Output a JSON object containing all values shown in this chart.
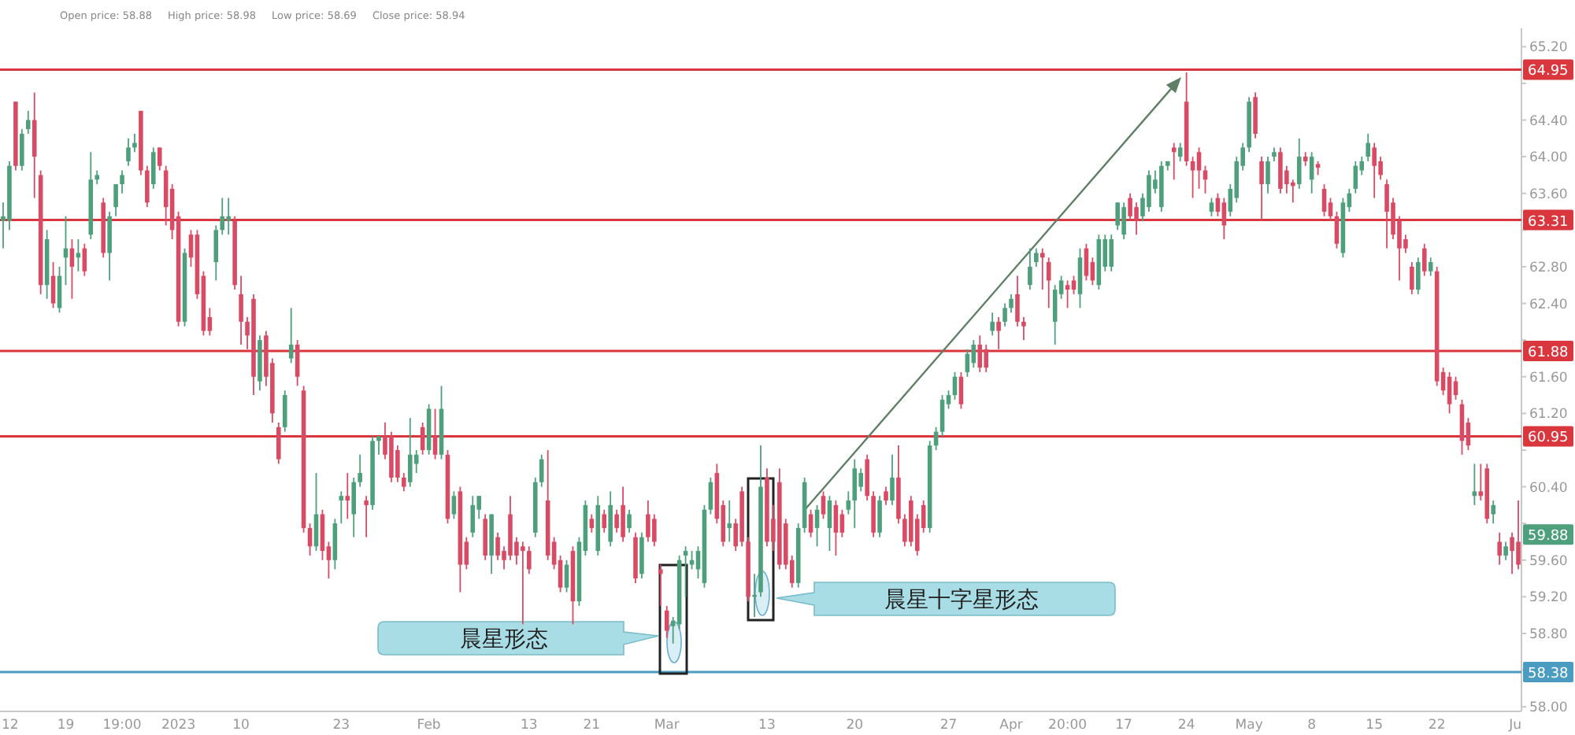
{
  "chart_data": {
    "type": "candlestick",
    "categories": [
      "12",
      null,
      null,
      null,
      null,
      null,
      null,
      null,
      null,
      null,
      "19",
      null,
      null,
      null,
      null,
      null,
      null,
      null,
      null,
      "19:00",
      null,
      null,
      null,
      null,
      null,
      null,
      null,
      null,
      "2023",
      null,
      null,
      null,
      null,
      null,
      null,
      null,
      null,
      null,
      "10",
      null,
      null,
      null,
      null,
      null,
      null,
      null,
      null,
      null,
      null,
      null,
      null,
      null,
      null,
      null,
      "23",
      null,
      null,
      null,
      null,
      null,
      null,
      null,
      null,
      null,
      null,
      null,
      null,
      null,
      "Feb",
      null,
      null,
      null,
      null,
      null,
      null,
      null,
      null,
      null,
      null,
      null,
      null,
      null,
      null,
      null,
      "13",
      null,
      null,
      null,
      null,
      null,
      null,
      null,
      null,
      null,
      "21",
      null,
      null,
      null,
      null,
      null,
      null,
      null,
      null,
      null,
      null,
      null,
      "Mar",
      null,
      null,
      null,
      null,
      null,
      null,
      null,
      null,
      null,
      null,
      null,
      null,
      null,
      null,
      null,
      "13",
      null,
      null,
      null,
      null,
      null,
      null,
      null,
      null,
      null,
      null,
      null,
      null,
      null,
      "20",
      null,
      null,
      null,
      null,
      null,
      null,
      null,
      null,
      null,
      null,
      null,
      null,
      null,
      null,
      "27",
      null,
      null,
      null,
      null,
      null,
      null,
      null,
      null,
      null,
      "Apr",
      null,
      null,
      null,
      null,
      null,
      null,
      null,
      null,
      "20:00",
      null,
      null,
      null,
      null,
      null,
      null,
      null,
      null,
      "17",
      null,
      null,
      null,
      null,
      null,
      null,
      null,
      null,
      null,
      "24",
      null,
      null,
      null,
      null,
      null,
      null,
      null,
      null,
      null,
      "May",
      null,
      null,
      null,
      null,
      null,
      null,
      null,
      null,
      null,
      "8",
      null,
      null,
      null,
      null,
      null,
      null,
      null,
      null,
      null,
      "15",
      null,
      null,
      null,
      null,
      null,
      null,
      null,
      null,
      null,
      "22",
      null,
      null,
      null,
      null,
      null,
      null,
      null,
      null,
      null,
      null,
      null,
      null,
      "Ju"
    ],
    "ohlc": [
      [
        63.3,
        63.5,
        63.0,
        63.35
      ],
      [
        63.3,
        63.95,
        63.2,
        63.9
      ],
      [
        64.6,
        64.6,
        63.85,
        63.9
      ],
      [
        63.9,
        64.3,
        63.85,
        64.25
      ],
      [
        64.3,
        64.5,
        64.25,
        64.4
      ],
      [
        64.4,
        64.7,
        63.55,
        64.0
      ],
      [
        63.8,
        63.85,
        62.5,
        62.6
      ],
      [
        62.6,
        63.2,
        62.45,
        63.1
      ],
      [
        62.7,
        62.85,
        62.35,
        62.4
      ],
      [
        62.35,
        62.8,
        62.3,
        62.7
      ],
      [
        62.9,
        63.35,
        62.6,
        63.0
      ],
      [
        63.0,
        63.1,
        62.45,
        62.8
      ],
      [
        62.9,
        63.1,
        62.75,
        62.95
      ],
      [
        63.0,
        63.05,
        62.7,
        62.75
      ],
      [
        63.15,
        64.05,
        63.1,
        63.75
      ],
      [
        63.75,
        63.85,
        63.7,
        63.8
      ],
      [
        63.5,
        63.55,
        62.9,
        62.95
      ],
      [
        62.95,
        63.4,
        62.65,
        63.35
      ],
      [
        63.45,
        63.7,
        63.35,
        63.7
      ],
      [
        63.7,
        63.85,
        63.6,
        63.8
      ],
      [
        63.95,
        64.2,
        63.9,
        64.1
      ],
      [
        64.1,
        64.25,
        64.05,
        64.15
      ],
      [
        64.5,
        64.5,
        63.8,
        63.85
      ],
      [
        63.85,
        63.9,
        63.45,
        63.5
      ],
      [
        63.7,
        64.1,
        63.65,
        64.05
      ],
      [
        64.1,
        64.1,
        63.85,
        63.9
      ],
      [
        63.85,
        63.9,
        63.25,
        63.45
      ],
      [
        63.65,
        63.7,
        63.1,
        63.2
      ],
      [
        63.35,
        63.4,
        62.15,
        62.2
      ],
      [
        62.2,
        63.0,
        62.15,
        62.95
      ],
      [
        63.15,
        63.2,
        62.8,
        62.9
      ],
      [
        63.15,
        63.2,
        62.45,
        62.5
      ],
      [
        62.7,
        62.75,
        62.05,
        62.1
      ],
      [
        62.25,
        62.35,
        62.05,
        62.1
      ],
      [
        62.85,
        63.25,
        62.65,
        63.2
      ],
      [
        63.2,
        63.55,
        63.15,
        63.35
      ],
      [
        63.3,
        63.55,
        63.15,
        63.35
      ],
      [
        63.3,
        63.35,
        62.55,
        62.6
      ],
      [
        62.5,
        62.7,
        61.95,
        62.2
      ],
      [
        62.2,
        62.25,
        61.9,
        62.05
      ],
      [
        62.45,
        62.5,
        61.4,
        61.6
      ],
      [
        61.55,
        62.05,
        61.45,
        62.0
      ],
      [
        62.05,
        62.1,
        61.5,
        61.6
      ],
      [
        61.75,
        61.8,
        61.1,
        61.2
      ],
      [
        61.05,
        61.1,
        60.65,
        60.7
      ],
      [
        61.05,
        61.45,
        61.0,
        61.4
      ],
      [
        61.8,
        62.35,
        61.75,
        61.95
      ],
      [
        61.95,
        62.0,
        61.5,
        61.6
      ],
      [
        61.45,
        61.5,
        59.9,
        59.95
      ],
      [
        59.95,
        60.0,
        59.65,
        59.75
      ],
      [
        59.75,
        60.55,
        59.7,
        60.1
      ],
      [
        60.1,
        60.15,
        59.6,
        59.7
      ],
      [
        59.75,
        59.8,
        59.4,
        59.6
      ],
      [
        59.6,
        60.05,
        59.5,
        60.0
      ],
      [
        60.25,
        60.35,
        60.0,
        60.3
      ],
      [
        60.3,
        60.55,
        60.05,
        60.25
      ],
      [
        60.1,
        60.5,
        59.85,
        60.45
      ],
      [
        60.45,
        60.75,
        60.4,
        60.55
      ],
      [
        60.25,
        60.3,
        59.85,
        60.2
      ],
      [
        60.2,
        60.95,
        60.15,
        60.9
      ],
      [
        60.9,
        60.95,
        60.75,
        60.95
      ],
      [
        60.95,
        61.1,
        60.7,
        60.75
      ],
      [
        60.95,
        61.0,
        60.45,
        60.5
      ],
      [
        60.8,
        60.85,
        60.45,
        60.5
      ],
      [
        60.5,
        60.55,
        60.35,
        60.4
      ],
      [
        60.45,
        61.15,
        60.4,
        60.75
      ],
      [
        60.65,
        60.8,
        60.55,
        60.75
      ],
      [
        61.05,
        61.1,
        60.75,
        60.8
      ],
      [
        60.8,
        61.3,
        60.75,
        61.25
      ],
      [
        60.95,
        61.25,
        60.7,
        60.75
      ],
      [
        60.75,
        61.5,
        60.7,
        61.25
      ],
      [
        60.75,
        60.8,
        60.0,
        60.05
      ],
      [
        60.1,
        60.35,
        60.05,
        60.3
      ],
      [
        60.35,
        60.4,
        59.25,
        59.55
      ],
      [
        59.8,
        59.85,
        59.5,
        59.55
      ],
      [
        59.9,
        60.3,
        59.85,
        60.2
      ],
      [
        60.15,
        60.3,
        60.05,
        60.3
      ],
      [
        60.05,
        60.1,
        59.6,
        59.65
      ],
      [
        59.65,
        60.1,
        59.45,
        60.1
      ],
      [
        59.85,
        59.9,
        59.6,
        59.65
      ],
      [
        59.7,
        59.75,
        59.5,
        59.6
      ],
      [
        60.1,
        60.3,
        59.6,
        59.65
      ],
      [
        59.8,
        59.85,
        59.55,
        59.65
      ],
      [
        59.75,
        59.8,
        58.9,
        59.7
      ],
      [
        59.7,
        59.75,
        59.45,
        59.5
      ],
      [
        59.9,
        60.5,
        59.85,
        60.45
      ],
      [
        60.45,
        60.75,
        60.4,
        60.7
      ],
      [
        60.25,
        60.8,
        59.6,
        59.65
      ],
      [
        59.8,
        59.85,
        59.5,
        59.55
      ],
      [
        59.6,
        59.65,
        59.25,
        59.3
      ],
      [
        59.3,
        59.6,
        59.25,
        59.55
      ],
      [
        59.7,
        59.75,
        58.9,
        59.15
      ],
      [
        59.15,
        59.85,
        59.1,
        59.8
      ],
      [
        59.7,
        60.25,
        59.65,
        60.2
      ],
      [
        60.05,
        60.1,
        59.9,
        59.95
      ],
      [
        59.7,
        60.3,
        59.65,
        60.2
      ],
      [
        60.1,
        60.15,
        59.9,
        59.95
      ],
      [
        59.8,
        60.35,
        59.75,
        60.2
      ],
      [
        60.1,
        60.15,
        59.9,
        59.95
      ],
      [
        60.2,
        60.4,
        59.8,
        59.85
      ],
      [
        59.95,
        60.15,
        59.9,
        60.1
      ],
      [
        59.85,
        59.9,
        59.35,
        59.4
      ],
      [
        59.45,
        59.9,
        59.4,
        59.85
      ],
      [
        60.1,
        60.25,
        59.8,
        59.85
      ],
      [
        60.05,
        60.1,
        59.75,
        59.8
      ],
      [
        59.5,
        59.55,
        59.1,
        59.45
      ],
      [
        59.05,
        59.1,
        58.75,
        58.83
      ],
      [
        58.88,
        58.98,
        58.69,
        58.94
      ],
      [
        58.9,
        59.65,
        58.85,
        59.6
      ],
      [
        59.65,
        59.75,
        59.2,
        59.7
      ],
      [
        59.55,
        59.7,
        59.5,
        59.6
      ],
      [
        59.5,
        59.75,
        59.4,
        59.7
      ],
      [
        59.35,
        60.2,
        59.3,
        60.15
      ],
      [
        60.15,
        60.5,
        60.1,
        60.45
      ],
      [
        60.55,
        60.65,
        60.0,
        60.05
      ],
      [
        60.2,
        60.25,
        59.75,
        59.8
      ],
      [
        59.95,
        60.25,
        59.8,
        60.0
      ],
      [
        60.0,
        60.05,
        59.7,
        59.75
      ],
      [
        60.35,
        60.4,
        59.75,
        59.8
      ],
      [
        59.8,
        59.85,
        59.15,
        59.2
      ],
      [
        59.2,
        59.45,
        58.98,
        59.22
      ],
      [
        59.25,
        60.85,
        59.2,
        60.4
      ],
      [
        60.5,
        60.6,
        59.75,
        59.8
      ],
      [
        60.05,
        60.2,
        59.7,
        59.8
      ],
      [
        60.45,
        60.6,
        59.5,
        59.55
      ],
      [
        60.0,
        60.05,
        59.5,
        59.55
      ],
      [
        59.6,
        59.65,
        59.3,
        59.35
      ],
      [
        59.35,
        60.0,
        59.3,
        59.95
      ],
      [
        59.95,
        60.5,
        59.9,
        60.45
      ],
      [
        60.1,
        60.15,
        59.85,
        59.9
      ],
      [
        59.95,
        60.2,
        59.75,
        60.15
      ],
      [
        60.3,
        60.35,
        60.05,
        60.1
      ],
      [
        59.95,
        60.3,
        59.7,
        60.25
      ],
      [
        60.2,
        60.25,
        59.65,
        59.9
      ],
      [
        60.1,
        60.15,
        59.85,
        59.9
      ],
      [
        60.15,
        60.35,
        60.1,
        60.25
      ],
      [
        60.25,
        60.7,
        59.95,
        60.6
      ],
      [
        60.4,
        60.6,
        60.35,
        60.55
      ],
      [
        60.7,
        60.75,
        60.25,
        60.3
      ],
      [
        60.3,
        60.35,
        59.85,
        59.9
      ],
      [
        59.9,
        60.3,
        59.85,
        60.25
      ],
      [
        60.35,
        60.4,
        60.2,
        60.25
      ],
      [
        60.25,
        60.75,
        60.2,
        60.5
      ],
      [
        60.5,
        60.85,
        60.0,
        60.05
      ],
      [
        60.05,
        60.1,
        59.75,
        59.8
      ],
      [
        60.25,
        60.3,
        59.75,
        59.8
      ],
      [
        60.05,
        60.1,
        59.65,
        59.7
      ],
      [
        60.2,
        60.25,
        59.9,
        59.95
      ],
      [
        59.95,
        60.9,
        59.9,
        60.85
      ],
      [
        60.85,
        61.05,
        60.8,
        61.0
      ],
      [
        61.0,
        61.4,
        60.95,
        61.35
      ],
      [
        61.3,
        61.45,
        61.25,
        61.4
      ],
      [
        61.4,
        61.65,
        61.35,
        61.6
      ],
      [
        61.6,
        61.65,
        61.25,
        61.3
      ],
      [
        61.65,
        61.9,
        61.6,
        61.85
      ],
      [
        61.75,
        62.0,
        61.7,
        61.95
      ],
      [
        61.95,
        62.05,
        61.65,
        61.7
      ],
      [
        61.9,
        61.95,
        61.65,
        61.7
      ],
      [
        62.1,
        62.3,
        62.05,
        62.2
      ],
      [
        62.2,
        62.25,
        61.9,
        62.1
      ],
      [
        62.2,
        62.4,
        62.15,
        62.35
      ],
      [
        62.35,
        62.5,
        62.3,
        62.45
      ],
      [
        62.5,
        62.7,
        62.15,
        62.2
      ],
      [
        62.2,
        62.25,
        62.0,
        62.15
      ],
      [
        62.6,
        63.0,
        62.55,
        62.8
      ],
      [
        62.85,
        63.0,
        62.8,
        62.95
      ],
      [
        62.95,
        63.0,
        62.55,
        62.9
      ],
      [
        62.85,
        62.9,
        62.35,
        62.65
      ],
      [
        62.2,
        62.6,
        61.95,
        62.55
      ],
      [
        62.5,
        62.7,
        62.45,
        62.65
      ],
      [
        62.6,
        62.65,
        62.35,
        62.55
      ],
      [
        62.65,
        62.7,
        62.5,
        62.55
      ],
      [
        62.5,
        63.0,
        62.35,
        62.9
      ],
      [
        63.0,
        63.05,
        62.65,
        62.7
      ],
      [
        62.85,
        62.9,
        62.6,
        62.65
      ],
      [
        62.6,
        63.15,
        62.55,
        63.1
      ],
      [
        62.8,
        63.15,
        62.75,
        63.1
      ],
      [
        62.8,
        63.15,
        62.75,
        63.1
      ],
      [
        63.25,
        63.5,
        63.2,
        63.5
      ],
      [
        63.15,
        63.5,
        63.1,
        63.45
      ],
      [
        63.55,
        63.6,
        63.3,
        63.35
      ],
      [
        63.45,
        63.5,
        63.15,
        63.3
      ],
      [
        63.35,
        63.6,
        63.3,
        63.55
      ],
      [
        63.45,
        63.85,
        63.4,
        63.8
      ],
      [
        63.65,
        63.85,
        63.6,
        63.75
      ],
      [
        63.45,
        63.95,
        63.4,
        63.9
      ],
      [
        63.9,
        63.95,
        63.85,
        63.95
      ],
      [
        64.1,
        64.15,
        63.75,
        64.05
      ],
      [
        64.0,
        64.15,
        63.95,
        64.1
      ],
      [
        64.6,
        64.92,
        63.9,
        63.95
      ],
      [
        63.95,
        64.0,
        63.55,
        63.85
      ],
      [
        64.05,
        64.1,
        63.65,
        63.85
      ],
      [
        63.85,
        63.9,
        63.6,
        63.75
      ],
      [
        63.4,
        63.55,
        63.35,
        63.5
      ],
      [
        63.55,
        63.6,
        63.35,
        63.4
      ],
      [
        63.5,
        63.55,
        63.1,
        63.25
      ],
      [
        63.4,
        63.7,
        63.35,
        63.65
      ],
      [
        63.55,
        64.0,
        63.5,
        63.95
      ],
      [
        63.9,
        64.15,
        63.85,
        64.1
      ],
      [
        64.1,
        64.65,
        64.05,
        64.6
      ],
      [
        64.65,
        64.7,
        64.2,
        64.25
      ],
      [
        63.95,
        64.0,
        63.3,
        63.7
      ],
      [
        63.7,
        64.0,
        63.6,
        63.95
      ],
      [
        64.0,
        64.1,
        63.95,
        64.05
      ],
      [
        64.05,
        64.1,
        63.6,
        63.65
      ],
      [
        63.85,
        63.9,
        63.6,
        63.7
      ],
      [
        63.72,
        63.75,
        63.5,
        63.68
      ],
      [
        63.7,
        64.2,
        63.65,
        64.0
      ],
      [
        64.0,
        64.05,
        63.9,
        63.95
      ],
      [
        63.75,
        64.05,
        63.6,
        64.0
      ],
      [
        63.92,
        63.95,
        63.8,
        63.88
      ],
      [
        63.65,
        63.7,
        63.35,
        63.4
      ],
      [
        63.5,
        63.55,
        63.3,
        63.35
      ],
      [
        63.35,
        63.4,
        63.0,
        63.05
      ],
      [
        62.95,
        63.55,
        62.9,
        63.5
      ],
      [
        63.45,
        63.65,
        63.4,
        63.6
      ],
      [
        63.65,
        63.95,
        63.6,
        63.9
      ],
      [
        63.85,
        64.0,
        63.8,
        63.95
      ],
      [
        64.0,
        64.25,
        63.95,
        64.15
      ],
      [
        64.1,
        64.15,
        63.55,
        63.9
      ],
      [
        63.95,
        64.0,
        63.75,
        63.8
      ],
      [
        63.7,
        63.75,
        63.0,
        63.4
      ],
      [
        63.5,
        63.55,
        63.1,
        63.15
      ],
      [
        63.3,
        63.35,
        62.65,
        63.0
      ],
      [
        63.1,
        63.15,
        62.95,
        63.0
      ],
      [
        62.8,
        62.85,
        62.5,
        62.55
      ],
      [
        62.55,
        62.9,
        62.5,
        62.85
      ],
      [
        63.0,
        63.05,
        62.7,
        62.75
      ],
      [
        62.75,
        62.9,
        62.7,
        62.85
      ],
      [
        62.75,
        62.8,
        61.5,
        61.55
      ],
      [
        61.65,
        61.7,
        61.4,
        61.45
      ],
      [
        61.6,
        61.65,
        61.2,
        61.3
      ],
      [
        61.55,
        61.6,
        61.35,
        61.4
      ],
      [
        61.3,
        61.35,
        60.75,
        60.9
      ],
      [
        61.1,
        61.15,
        60.8,
        60.85
      ],
      [
        60.3,
        60.65,
        60.2,
        60.35
      ],
      [
        60.35,
        60.65,
        60.25,
        60.3
      ],
      [
        60.6,
        60.65,
        60.0,
        60.05
      ],
      [
        60.1,
        60.25,
        60.0,
        60.2
      ],
      [
        59.8,
        59.9,
        59.55,
        59.65
      ],
      [
        59.65,
        59.8,
        59.6,
        59.75
      ],
      [
        59.85,
        59.9,
        59.45,
        59.7
      ],
      [
        59.8,
        60.25,
        59.5,
        59.55
      ]
    ],
    "ylim": [
      57.95,
      65.4
    ],
    "yticks": [
      {
        "value": 58.0,
        "label": "58.00"
      },
      {
        "value": 58.4,
        "label": null
      },
      {
        "value": 58.8,
        "label": "58.80"
      },
      {
        "value": 59.2,
        "label": "59.20"
      },
      {
        "value": 59.6,
        "label": "59.60"
      },
      {
        "value": 60.0,
        "label": null
      },
      {
        "value": 60.4,
        "label": "60.40"
      },
      {
        "value": 60.8,
        "label": null
      },
      {
        "value": 61.2,
        "label": "61.20"
      },
      {
        "value": 61.6,
        "label": "61.60"
      },
      {
        "value": 62.0,
        "label": null
      },
      {
        "value": 62.4,
        "label": "62.40"
      },
      {
        "value": 62.8,
        "label": "62.80"
      },
      {
        "value": 63.2,
        "label": null
      },
      {
        "value": 63.6,
        "label": "63.60"
      },
      {
        "value": 64.0,
        "label": "64.00"
      },
      {
        "value": 64.4,
        "label": "64.40"
      },
      {
        "value": 64.8,
        "label": null
      },
      {
        "value": 65.2,
        "label": "65.20"
      }
    ],
    "ref_lines": [
      {
        "axis": "y",
        "value": 64.95,
        "label": "64.95",
        "color": "#d9363e"
      },
      {
        "axis": "y",
        "value": 63.31,
        "label": "63.31",
        "color": "#d9363e"
      },
      {
        "axis": "y",
        "value": 61.88,
        "label": "61.88",
        "color": "#d9363e"
      },
      {
        "axis": "y",
        "value": 60.95,
        "label": "60.95",
        "color": "#d9363e"
      },
      {
        "axis": "y",
        "value": 58.38,
        "label": "58.38",
        "color": "#4a9cc0"
      }
    ],
    "annotations": [
      "Open price: 58.88",
      "High price: 58.98",
      "Low price: 58.69",
      "Close price: 58.94",
      "晨星形态",
      "晨星十字星形态",
      {
        "text": "59.88",
        "y": 59.88
      }
    ]
  }
}
